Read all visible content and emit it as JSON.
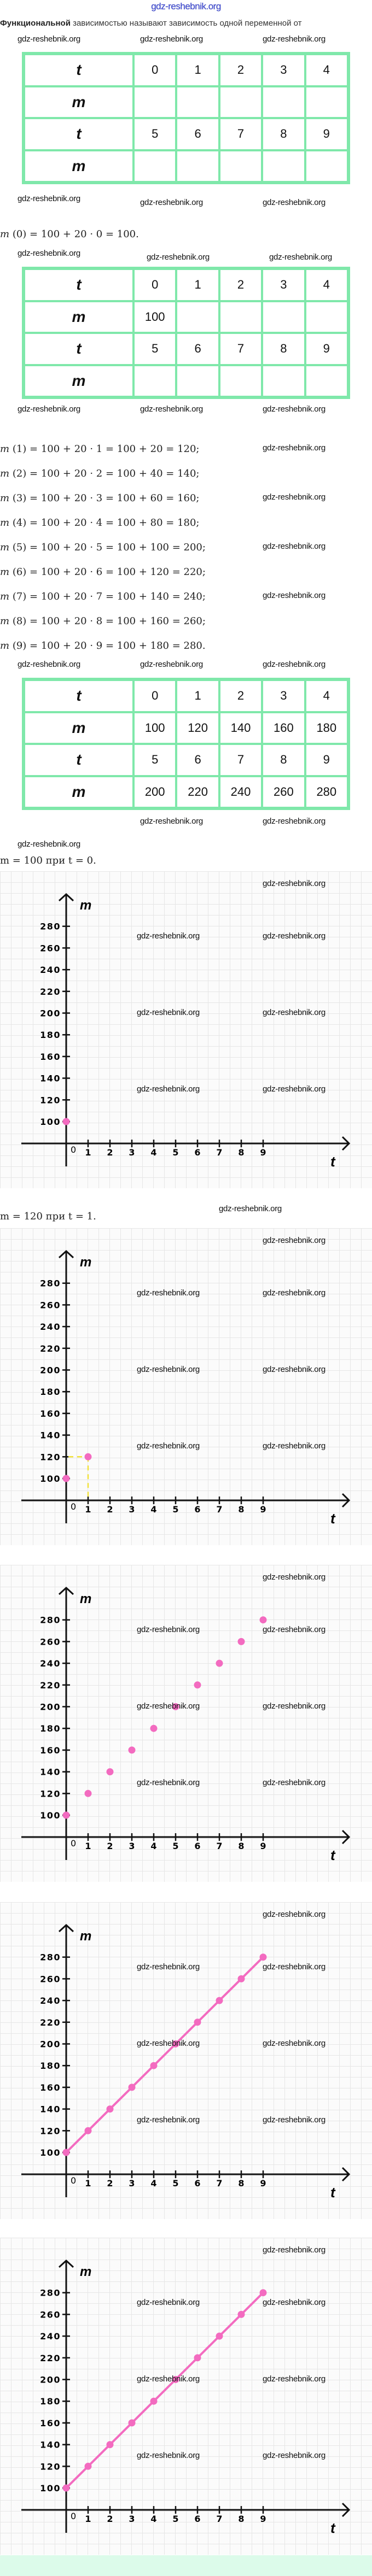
{
  "site_watermark": "gdz-reshebnik.org",
  "watermark": "gdz-reshebnik.org",
  "intro": {
    "bold": "Функциональной",
    "rest": " зависимостью называют зависимость одной переменной от"
  },
  "tables": [
    {
      "rows": [
        {
          "label": "t",
          "cells": [
            "0",
            "1",
            "2",
            "3",
            "4"
          ]
        },
        {
          "label": "m",
          "cells": [
            "",
            "",
            "",
            "",
            ""
          ]
        },
        {
          "label": "t",
          "cells": [
            "5",
            "6",
            "7",
            "8",
            "9"
          ]
        },
        {
          "label": "m",
          "cells": [
            "",
            "",
            "",
            "",
            ""
          ]
        }
      ]
    },
    {
      "rows": [
        {
          "label": "t",
          "cells": [
            "0",
            "1",
            "2",
            "3",
            "4"
          ]
        },
        {
          "label": "m",
          "cells": [
            "100",
            "",
            "",
            "",
            ""
          ]
        },
        {
          "label": "t",
          "cells": [
            "5",
            "6",
            "7",
            "8",
            "9"
          ]
        },
        {
          "label": "m",
          "cells": [
            "",
            "",
            "",
            "",
            ""
          ]
        }
      ]
    },
    {
      "rows": [
        {
          "label": "t",
          "cells": [
            "0",
            "1",
            "2",
            "3",
            "4"
          ]
        },
        {
          "label": "m",
          "cells": [
            "100",
            "120",
            "140",
            "160",
            "180"
          ]
        },
        {
          "label": "t",
          "cells": [
            "5",
            "6",
            "7",
            "8",
            "9"
          ]
        },
        {
          "label": "m",
          "cells": [
            "200",
            "220",
            "240",
            "260",
            "280"
          ]
        }
      ]
    }
  ],
  "equations": [
    "(0) = 100 + 20 · 0 = 100.",
    "(1) = 100 + 20 · 1 = 100 + 20 = 120;",
    "(2) = 100 + 20 · 2 = 100 + 40 = 140;",
    "(3) = 100 + 20 · 3 = 100 + 60 = 160;",
    "(4) = 100 + 20 · 4 = 100 + 80 = 180;",
    "(5) = 100 + 20 · 5 = 100 + 100 = 200;",
    "(6) = 100 + 20 · 6 = 100 + 120 = 220;",
    "(7) = 100 + 20 · 7 = 100 + 140 = 240;",
    "(8) = 100 + 20 · 8 = 100 + 160 = 260;",
    "(9) = 100 + 20 · 9 = 100 + 180 = 280."
  ],
  "eq_var": "m",
  "captions": [
    "m = 100 при t = 0.",
    "m = 120 при t = 1."
  ],
  "colors": {
    "point": "#f36bc0",
    "guide": "#f2e23a",
    "table_border": "#7fe8aa",
    "axis": "#111111"
  },
  "chart_data": [
    {
      "type": "scatter",
      "xlabel": "t",
      "ylabel": "m",
      "x": [
        0
      ],
      "y": [
        100
      ],
      "xticks": [
        0,
        1,
        2,
        3,
        4,
        5,
        6,
        7,
        8,
        9
      ],
      "yticks": [
        100,
        120,
        140,
        160,
        180,
        200,
        220,
        240,
        260,
        280
      ],
      "ylim": [
        100,
        280
      ],
      "xlim": [
        0,
        9
      ],
      "grid": true,
      "connect": false,
      "guides": []
    },
    {
      "type": "scatter",
      "xlabel": "t",
      "ylabel": "m",
      "x": [
        0,
        1
      ],
      "y": [
        100,
        120
      ],
      "xticks": [
        0,
        1,
        2,
        3,
        4,
        5,
        6,
        7,
        8,
        9
      ],
      "yticks": [
        100,
        120,
        140,
        160,
        180,
        200,
        220,
        240,
        260,
        280
      ],
      "ylim": [
        100,
        280
      ],
      "xlim": [
        0,
        9
      ],
      "grid": true,
      "connect": false,
      "guides": [
        {
          "x": 1,
          "y": 120
        }
      ]
    },
    {
      "type": "scatter",
      "xlabel": "t",
      "ylabel": "m",
      "x": [
        0,
        1,
        2,
        3,
        4,
        5,
        6,
        7,
        8,
        9
      ],
      "y": [
        100,
        120,
        140,
        160,
        180,
        200,
        220,
        240,
        260,
        280
      ],
      "xticks": [
        0,
        1,
        2,
        3,
        4,
        5,
        6,
        7,
        8,
        9
      ],
      "yticks": [
        100,
        120,
        140,
        160,
        180,
        200,
        220,
        240,
        260,
        280
      ],
      "ylim": [
        100,
        280
      ],
      "xlim": [
        0,
        9
      ],
      "grid": true,
      "connect": false,
      "guides": []
    },
    {
      "type": "line",
      "xlabel": "t",
      "ylabel": "m",
      "x": [
        0,
        1,
        2,
        3,
        4,
        5,
        6,
        7,
        8,
        9
      ],
      "y": [
        100,
        120,
        140,
        160,
        180,
        200,
        220,
        240,
        260,
        280
      ],
      "xticks": [
        0,
        1,
        2,
        3,
        4,
        5,
        6,
        7,
        8,
        9
      ],
      "yticks": [
        100,
        120,
        140,
        160,
        180,
        200,
        220,
        240,
        260,
        280
      ],
      "ylim": [
        100,
        280
      ],
      "xlim": [
        0,
        9
      ],
      "grid": true,
      "connect": true,
      "guides": []
    },
    {
      "type": "line",
      "xlabel": "t",
      "ylabel": "m",
      "x": [
        0,
        1,
        2,
        3,
        4,
        5,
        6,
        7,
        8,
        9
      ],
      "y": [
        100,
        120,
        140,
        160,
        180,
        200,
        220,
        240,
        260,
        280
      ],
      "xticks": [
        0,
        1,
        2,
        3,
        4,
        5,
        6,
        7,
        8,
        9
      ],
      "yticks": [
        100,
        120,
        140,
        160,
        180,
        200,
        220,
        240,
        260,
        280
      ],
      "ylim": [
        100,
        280
      ],
      "xlim": [
        0,
        9
      ],
      "grid": true,
      "connect": true,
      "guides": []
    }
  ]
}
